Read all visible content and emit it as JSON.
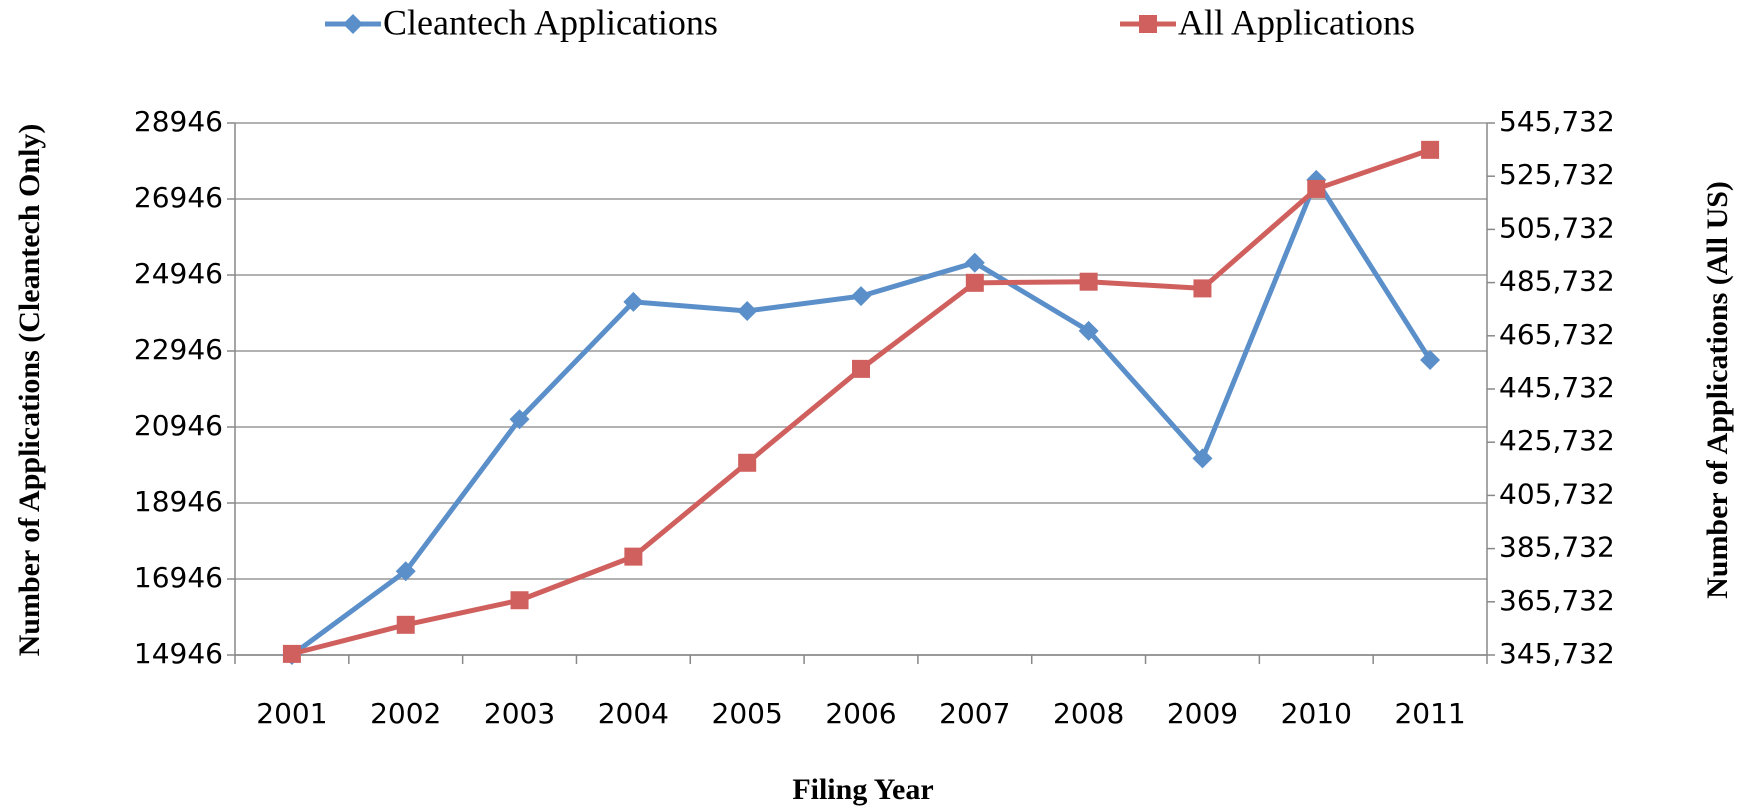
{
  "chart_data": {
    "type": "line",
    "x_label": "Filing Year",
    "y_label": "Number of Applications (Cleantech  Only)",
    "y2_label": "Number of Applications (All US)",
    "categories": [
      "2001",
      "2002",
      "2003",
      "2004",
      "2005",
      "2006",
      "2007",
      "2008",
      "2009",
      "2010",
      "2011"
    ],
    "series": [
      {
        "name": "Cleantech Applications",
        "color": "#5b8fc9",
        "marker": "diamond",
        "values": [
          14946,
          17150,
          21150,
          24240,
          24000,
          24390,
          25270,
          23475,
          20120,
          27450,
          22710
        ]
      },
      {
        "name": "All Applications",
        "color": "#d0605e",
        "marker": "square",
        "axis": "y2",
        "values": [
          346150,
          357080,
          366320,
          382710,
          418000,
          453300,
          485650,
          486070,
          483550,
          520940,
          535640
        ]
      }
    ],
    "ylim": [
      14946,
      28946
    ],
    "yticks": [
      14946,
      16946,
      18946,
      20946,
      22946,
      24946,
      26946,
      28946
    ],
    "y2lim": [
      345732,
      545732
    ],
    "y2ticks": [
      {
        "value": 345732,
        "label": "345,732"
      },
      {
        "value": 365732,
        "label": "365,732"
      },
      {
        "value": 385732,
        "label": "385,732"
      },
      {
        "value": 405732,
        "label": "405,732"
      },
      {
        "value": 425732,
        "label": "425,732"
      },
      {
        "value": 445732,
        "label": "445,732"
      },
      {
        "value": 465732,
        "label": "465,732"
      },
      {
        "value": 485732,
        "label": "485,732"
      },
      {
        "value": 505732,
        "label": "505,732"
      },
      {
        "value": 525732,
        "label": "525,732"
      },
      {
        "value": 545732,
        "label": "545,732"
      }
    ],
    "grid": true
  }
}
